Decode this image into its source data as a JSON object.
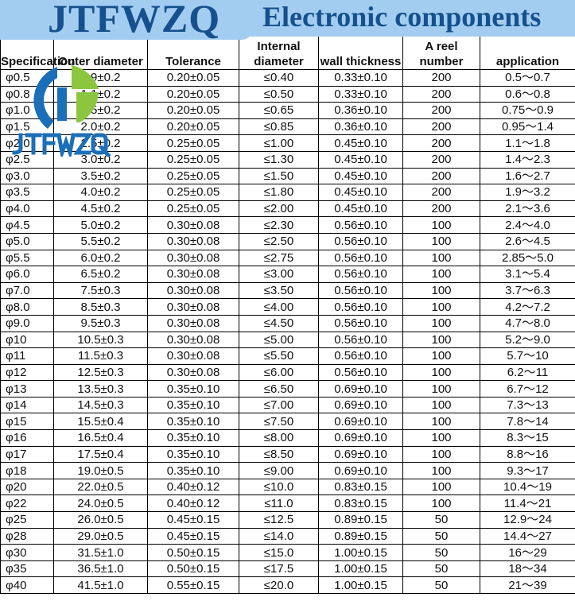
{
  "banner": {
    "brand": "JTFWZQ",
    "title": "Electronic components"
  },
  "logo": {
    "text": "JTFWZQ"
  },
  "columns": [
    "Specification",
    "Outer diameter",
    "Tolerance",
    "Internal diameter",
    "wall thickness",
    "A reel number",
    "application"
  ],
  "rows": [
    [
      "φ0.5",
      "0.9±0.2",
      "0.20±0.05",
      "≤0.40",
      "0.33±0.10",
      "200",
      "0.5～0.7"
    ],
    [
      "φ0.8",
      "1.1±0.2",
      "0.20±0.05",
      "≤0.50",
      "0.33±0.10",
      "200",
      "0.6～0.8"
    ],
    [
      "φ1.0",
      "1.5±0.2",
      "0.20±0.05",
      "≤0.65",
      "0.36±0.10",
      "200",
      "0.75～0.9"
    ],
    [
      "φ1.5",
      "2.0±0.2",
      "0.20±0.05",
      "≤0.85",
      "0.36±0.10",
      "200",
      "0.95～1.4"
    ],
    [
      "φ2.0",
      "2.5±0.2",
      "0.25±0.05",
      "≤1.00",
      "0.45±0.10",
      "200",
      "1.1～1.8"
    ],
    [
      "φ2.5",
      "3.0±0.2",
      "0.25±0.05",
      "≤1.30",
      "0.45±0.10",
      "200",
      "1.4～2.3"
    ],
    [
      "φ3.0",
      "3.5±0.2",
      "0.25±0.05",
      "≤1.50",
      "0.45±0.10",
      "200",
      "1.6～2.7"
    ],
    [
      "φ3.5",
      "4.0±0.2",
      "0.25±0.05",
      "≤1.80",
      "0.45±0.10",
      "200",
      "1.9～3.2"
    ],
    [
      "φ4.0",
      "4.5±0.2",
      "0.25±0.05",
      "≤2.00",
      "0.45±0.10",
      "200",
      "2.1～3.6"
    ],
    [
      "φ4.5",
      "5.0±0.2",
      "0.30±0.08",
      "≤2.30",
      "0.56±0.10",
      "100",
      "2.4～4.0"
    ],
    [
      "φ5.0",
      "5.5±0.2",
      "0.30±0.08",
      "≤2.50",
      "0.56±0.10",
      "100",
      "2.6～4.5"
    ],
    [
      "φ5.5",
      "6.0±0.2",
      "0.30±0.08",
      "≤2.75",
      "0.56±0.10",
      "100",
      "2.85～5.0"
    ],
    [
      "φ6.0",
      "6.5±0.2",
      "0.30±0.08",
      "≤3.00",
      "0.56±0.10",
      "100",
      "3.1～5.4"
    ],
    [
      "φ7.0",
      "7.5±0.3",
      "0.30±0.08",
      "≤3.50",
      "0.56±0.10",
      "100",
      "3.7～6.3"
    ],
    [
      "φ8.0",
      "8.5±0.3",
      "0.30±0.08",
      "≤4.00",
      "0.56±0.10",
      "100",
      "4.2～7.2"
    ],
    [
      "φ9.0",
      "9.5±0.3",
      "0.30±0.08",
      "≤4.50",
      "0.56±0.10",
      "100",
      "4.7～8.0"
    ],
    [
      "φ10",
      "10.5±0.3",
      "0.30±0.08",
      "≤5.00",
      "0.56±0.10",
      "100",
      "5.2～9.0"
    ],
    [
      "φ11",
      "11.5±0.3",
      "0.30±0.08",
      "≤5.50",
      "0.56±0.10",
      "100",
      "5.7～10"
    ],
    [
      "φ12",
      "12.5±0.3",
      "0.30±0.08",
      "≤6.00",
      "0.56±0.10",
      "100",
      "6.2～11"
    ],
    [
      "φ13",
      "13.5±0.3",
      "0.35±0.10",
      "≤6.50",
      "0.69±0.10",
      "100",
      "6.7～12"
    ],
    [
      "φ14",
      "14.5±0.3",
      "0.35±0.10",
      "≤7.00",
      "0.69±0.10",
      "100",
      "7.3～13"
    ],
    [
      "φ15",
      "15.5±0.4",
      "0.35±0.10",
      "≤7.50",
      "0.69±0.10",
      "100",
      "7.8～14"
    ],
    [
      "φ16",
      "16.5±0.4",
      "0.35±0.10",
      "≤8.00",
      "0.69±0.10",
      "100",
      "8.3～15"
    ],
    [
      "φ17",
      "17.5±0.4",
      "0.35±0.10",
      "≤8.50",
      "0.69±0.10",
      "100",
      "8.8～16"
    ],
    [
      "φ18",
      "19.0±0.5",
      "0.35±0.10",
      "≤9.00",
      "0.69±0.10",
      "100",
      "9.3～17"
    ],
    [
      "φ20",
      "22.0±0.5",
      "0.40±0.12",
      "≤10.0",
      "0.83±0.15",
      "100",
      "10.4～19"
    ],
    [
      "φ22",
      "24.0±0.5",
      "0.40±0.12",
      "≤11.0",
      "0.83±0.15",
      "100",
      "11.4～21"
    ],
    [
      "φ25",
      "26.0±0.5",
      "0.45±0.15",
      "≤12.5",
      "0.89±0.15",
      "50",
      "12.9～24"
    ],
    [
      "φ28",
      "29.0±0.5",
      "0.45±0.15",
      "≤14.0",
      "0.89±0.15",
      "50",
      "14.4～27"
    ],
    [
      "φ30",
      "31.5±1.0",
      "0.50±0.15",
      "≤15.0",
      "1.00±0.15",
      "50",
      "16～29"
    ],
    [
      "φ35",
      "36.5±1.0",
      "0.50±0.15",
      "≤17.5",
      "1.00±0.15",
      "50",
      "18～34"
    ],
    [
      "φ40",
      "41.5±1.0",
      "0.55±0.15",
      "≤20.0",
      "1.00±0.15",
      "50",
      "21～39"
    ]
  ]
}
